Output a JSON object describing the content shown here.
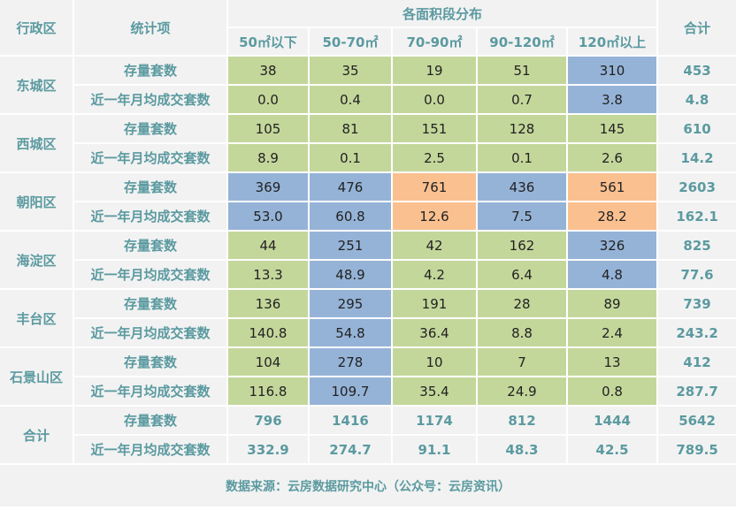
{
  "header": {
    "district": "行政区",
    "metric": "统计项",
    "distribution": "各面积段分布",
    "total": "合计",
    "bands": [
      "50㎡以下",
      "50-70㎡",
      "70-90㎡",
      "90-120㎡",
      "120㎡以上"
    ]
  },
  "metrics": {
    "stock": "存量套数",
    "monthly": "近一年月均成交套数"
  },
  "colors": {
    "green": "#c4d79b",
    "blue": "#95b3d7",
    "orange": "#fac090",
    "header_bg": "#f2f2f2",
    "accent_text": "#5b9aa0"
  },
  "rows": [
    {
      "district": "东城区",
      "stock": [
        "38",
        "35",
        "19",
        "51",
        "310"
      ],
      "stock_total": "453",
      "monthly": [
        "0.0",
        "0.4",
        "0.0",
        "0.7",
        "3.8"
      ],
      "monthly_total": "4.8",
      "colors": [
        "green",
        "green",
        "green",
        "green",
        "blue"
      ]
    },
    {
      "district": "西城区",
      "stock": [
        "105",
        "81",
        "151",
        "128",
        "145"
      ],
      "stock_total": "610",
      "monthly": [
        "8.9",
        "0.1",
        "2.5",
        "0.1",
        "2.6"
      ],
      "monthly_total": "14.2",
      "colors": [
        "green",
        "green",
        "green",
        "green",
        "green"
      ]
    },
    {
      "district": "朝阳区",
      "stock": [
        "369",
        "476",
        "761",
        "436",
        "561"
      ],
      "stock_total": "2603",
      "monthly": [
        "53.0",
        "60.8",
        "12.6",
        "7.5",
        "28.2"
      ],
      "monthly_total": "162.1",
      "colors": [
        "blue",
        "blue",
        "orange",
        "blue",
        "orange"
      ]
    },
    {
      "district": "海淀区",
      "stock": [
        "44",
        "251",
        "42",
        "162",
        "326"
      ],
      "stock_total": "825",
      "monthly": [
        "13.3",
        "48.9",
        "4.2",
        "6.4",
        "4.8"
      ],
      "monthly_total": "77.6",
      "colors": [
        "green",
        "blue",
        "green",
        "green",
        "blue"
      ]
    },
    {
      "district": "丰台区",
      "stock": [
        "136",
        "295",
        "191",
        "28",
        "89"
      ],
      "stock_total": "739",
      "monthly": [
        "140.8",
        "54.8",
        "36.4",
        "8.8",
        "2.4"
      ],
      "monthly_total": "243.2",
      "colors": [
        "green",
        "blue",
        "green",
        "green",
        "green"
      ]
    },
    {
      "district": "石景山区",
      "stock": [
        "104",
        "278",
        "10",
        "7",
        "13"
      ],
      "stock_total": "412",
      "monthly": [
        "116.8",
        "109.7",
        "35.4",
        "24.9",
        "0.8"
      ],
      "monthly_total": "287.7",
      "colors": [
        "green",
        "blue",
        "green",
        "green",
        "green"
      ]
    }
  ],
  "totals": {
    "label": "合计",
    "stock": [
      "796",
      "1416",
      "1174",
      "812",
      "1444"
    ],
    "stock_total": "5642",
    "monthly": [
      "332.9",
      "274.7",
      "91.1",
      "48.3",
      "42.5"
    ],
    "monthly_total": "789.5"
  },
  "footer": "数据来源：云房数据研究中心（公众号：云房资讯）"
}
